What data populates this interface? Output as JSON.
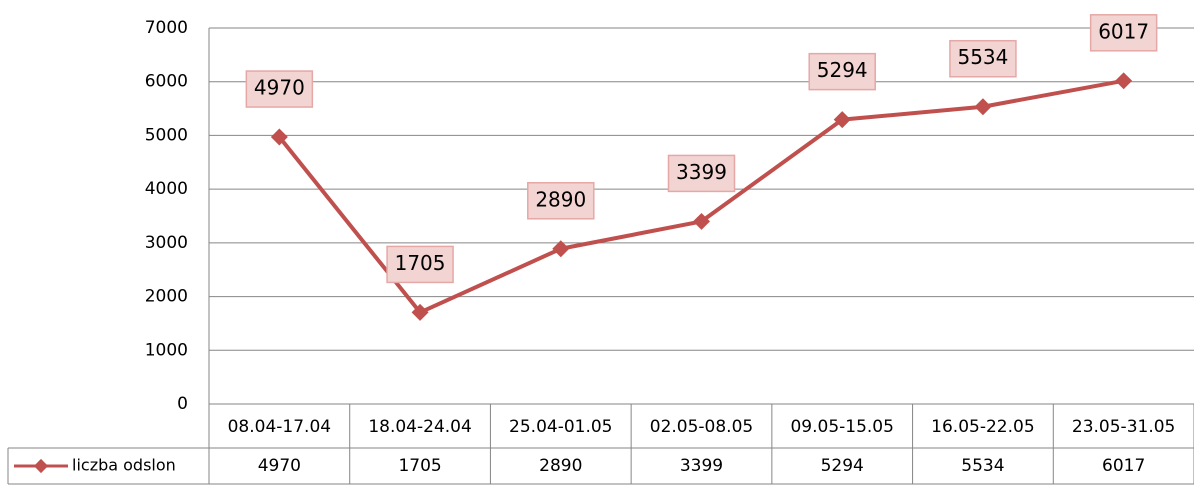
{
  "chart_data": {
    "type": "line",
    "categories": [
      "08.04-17.04",
      "18.04-24.04",
      "25.04-01.05",
      "02.05-08.05",
      "09.05-15.05",
      "16.05-22.05",
      "23.05-31.05"
    ],
    "series": [
      {
        "name": "liczba odslon",
        "color": "#c0504d",
        "values": [
          4970,
          1705,
          2890,
          3399,
          5294,
          5534,
          6017
        ]
      }
    ],
    "ylim": [
      0,
      7000
    ],
    "yticks": [
      0,
      1000,
      2000,
      3000,
      4000,
      5000,
      6000,
      7000
    ],
    "grid": true,
    "data_table": true
  }
}
